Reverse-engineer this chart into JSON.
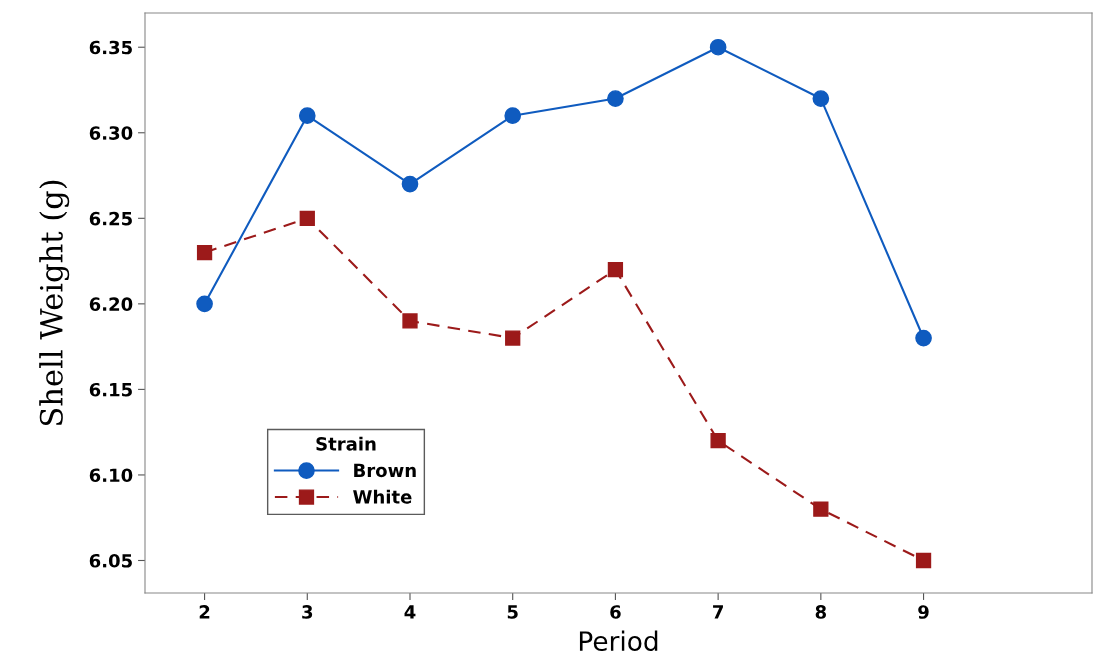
{
  "chart_data": {
    "type": "line",
    "xlabel": "Period",
    "ylabel": "Shell Weight (g)",
    "legend_title": "Strain",
    "x": [
      2,
      3,
      4,
      5,
      6,
      7,
      8,
      9
    ],
    "series": [
      {
        "name": "Brown",
        "color": "#0f5bbf",
        "marker": "circle",
        "line_style": "solid",
        "values": [
          6.2,
          6.31,
          6.27,
          6.31,
          6.32,
          6.35,
          6.32,
          6.18
        ]
      },
      {
        "name": "White",
        "color": "#9c1a1a",
        "marker": "square",
        "line_style": "dashed",
        "values": [
          6.23,
          6.25,
          6.19,
          6.18,
          6.22,
          6.12,
          6.08,
          6.05
        ]
      }
    ],
    "xlim": [
      1.42,
      10.64
    ],
    "ylim": [
      6.031,
      6.37
    ],
    "xticks": [
      2,
      3,
      4,
      5,
      6,
      7,
      8,
      9
    ],
    "yticks": [
      {
        "value": 6.05,
        "label": "6.05"
      },
      {
        "value": 6.1,
        "label": "6.10"
      },
      {
        "value": 6.15,
        "label": "6.15"
      },
      {
        "value": 6.2,
        "label": "6.20"
      },
      {
        "value": 6.25,
        "label": "6.25"
      },
      {
        "value": 6.3,
        "label": "6.30"
      },
      {
        "value": 6.35,
        "label": "6.35"
      }
    ],
    "grid": false,
    "legend": "bottom left"
  }
}
